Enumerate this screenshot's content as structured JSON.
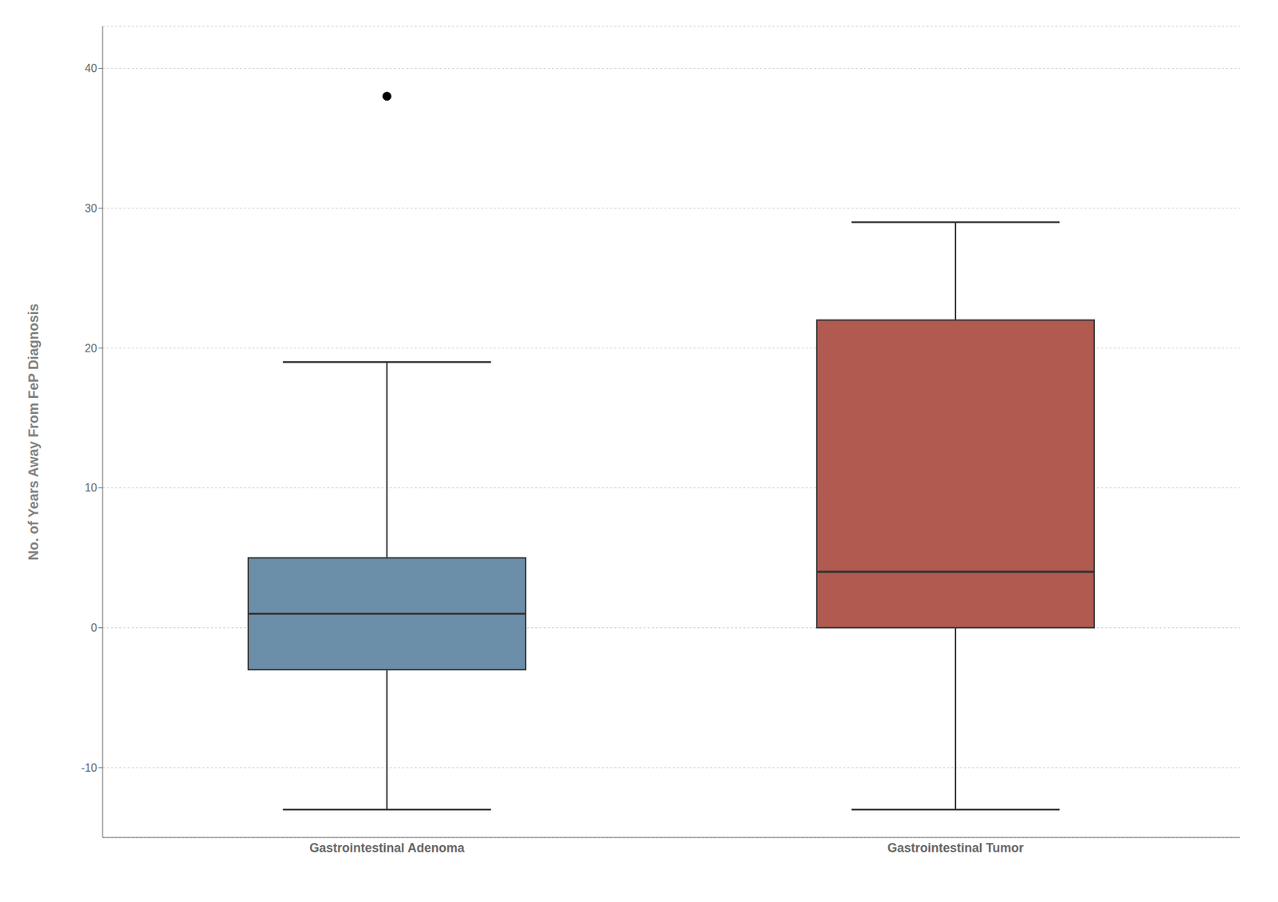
{
  "chart_data": {
    "type": "box",
    "categories": [
      "Gastrointestinal Adenoma",
      "Gastrointestinal Tumor"
    ],
    "boxes": [
      {
        "whislo": -13,
        "q1": -3,
        "med": 1,
        "q3": 5,
        "whishi": 19,
        "fliers": [
          38
        ]
      },
      {
        "whislo": -13,
        "q1": 0,
        "med": 4,
        "q3": 22,
        "whishi": 29,
        "fliers": []
      }
    ],
    "colors": [
      "#6b8fa8",
      "#b05a50"
    ],
    "ylabel": "No. of Years Away From FeP Diagnosis",
    "ylim": [
      -15,
      43
    ],
    "yticks": [
      -10,
      0,
      10,
      20,
      30,
      40
    ],
    "grid": true
  }
}
